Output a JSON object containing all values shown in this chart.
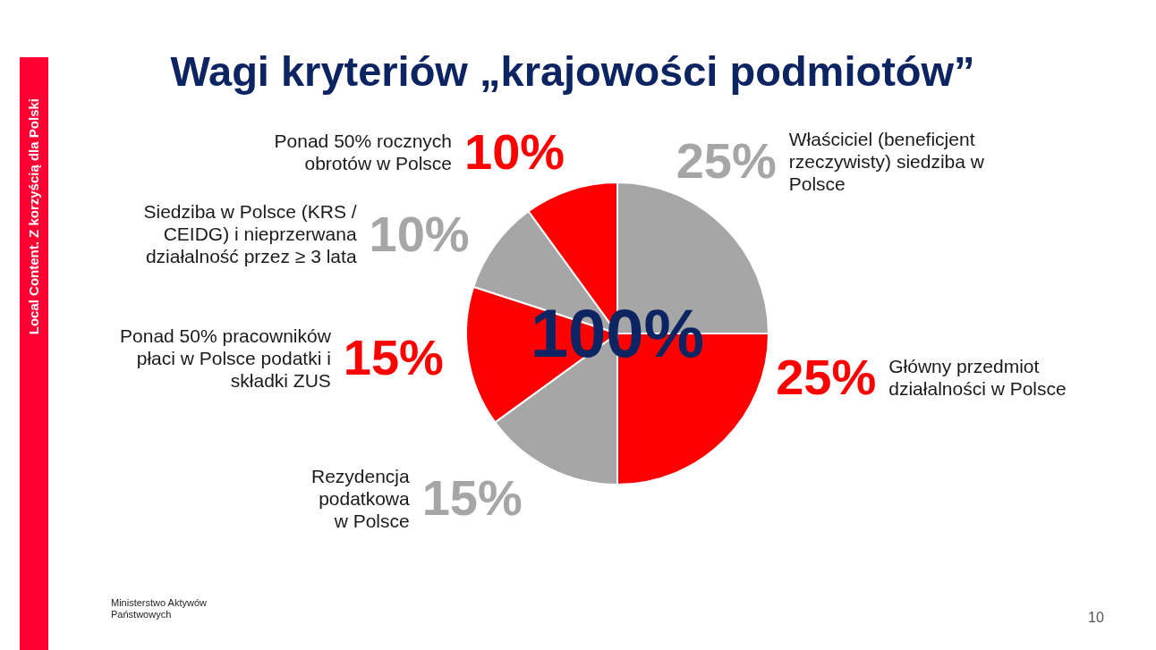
{
  "chart_data": {
    "type": "pie",
    "title": "Wagi kryteriów „krajowości podmiotów”",
    "categories": [
      "Właściciel (beneficjent rzeczywisty) siedziba w Polsce",
      "Główny przedmiot działalności w Polsce",
      "Rezydencja podatkowa w Polsce",
      "Ponad 50% pracowników płaci w Polsce podatki i składki ZUS",
      "Siedziba w Polsce (KRS / CEIDG) i nieprzerwana działalność przez ≥ 3 lata",
      "Ponad 50% rocznych obrotów w Polsce"
    ],
    "values": [
      25,
      25,
      15,
      15,
      10,
      10
    ],
    "colors": [
      "#a6a6a6",
      "#ff0000",
      "#a6a6a6",
      "#ff0000",
      "#a6a6a6",
      "#ff0000"
    ],
    "value_labels": [
      "25%",
      "25%",
      "15%",
      "15%",
      "10%",
      "10%"
    ],
    "annotations": [
      "100%",
      "Local Content. Z korzyścią dla Polski",
      "Ministerstwo Aktywów Państwowych",
      "10"
    ]
  }
}
